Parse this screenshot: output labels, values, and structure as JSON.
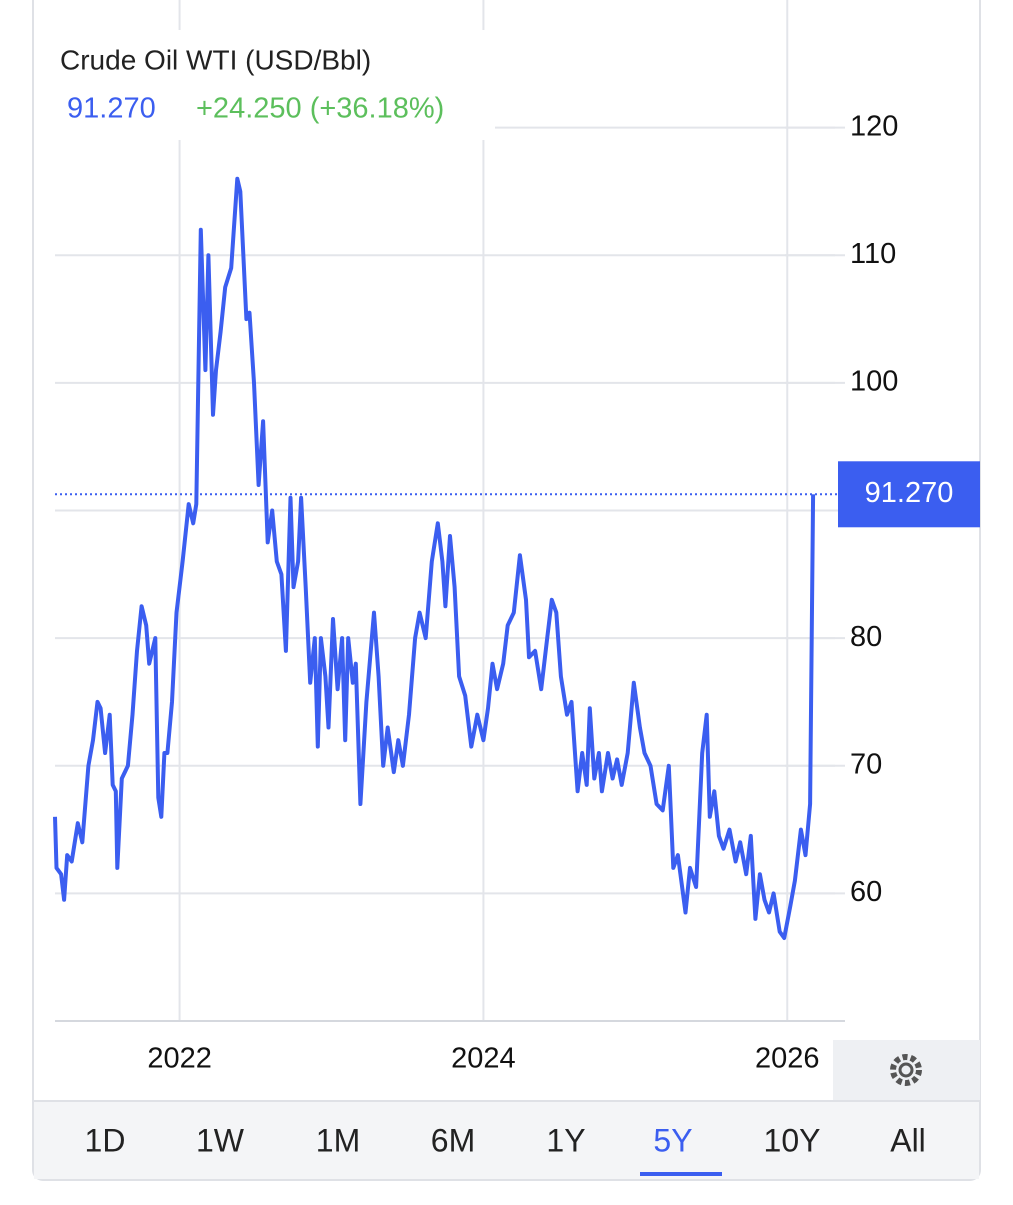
{
  "chart_data": {
    "type": "line",
    "title": "Crude Oil WTI (USD/Bbl)",
    "last_value": 91.27,
    "last_value_label": "91.270",
    "change_label": "+24.250 (+36.18%)",
    "color": "#3b5ef0",
    "change_color": "#5cbf5c",
    "grid": true,
    "xlim": [
      2021.18,
      2026.38
    ],
    "xticks": [
      2022,
      2024,
      2026
    ],
    "ylim": [
      50,
      130
    ],
    "yticks": [
      60,
      70,
      80,
      90,
      100,
      110,
      120
    ],
    "x": [
      2021.18,
      2021.19,
      2021.22,
      2021.24,
      2021.26,
      2021.29,
      2021.33,
      2021.36,
      2021.4,
      2021.43,
      2021.46,
      2021.48,
      2021.51,
      2021.54,
      2021.56,
      2021.58,
      2021.59,
      2021.62,
      2021.66,
      2021.69,
      2021.72,
      2021.75,
      2021.78,
      2021.8,
      2021.84,
      2021.86,
      2021.88,
      2021.9,
      2021.92,
      2021.95,
      2021.98,
      2022.02,
      2022.06,
      2022.09,
      2022.11,
      2022.14,
      2022.17,
      2022.19,
      2022.22,
      2022.24,
      2022.27,
      2022.3,
      2022.34,
      2022.38,
      2022.4,
      2022.44,
      2022.46,
      2022.49,
      2022.52,
      2022.55,
      2022.58,
      2022.61,
      2022.64,
      2022.67,
      2022.7,
      2022.73,
      2022.75,
      2022.78,
      2022.8,
      2022.83,
      2022.86,
      2022.89,
      2022.91,
      2022.93,
      2022.96,
      2022.98,
      2023.01,
      2023.04,
      2023.07,
      2023.09,
      2023.11,
      2023.14,
      2023.16,
      2023.19,
      2023.23,
      2023.28,
      2023.31,
      2023.34,
      2023.37,
      2023.41,
      2023.44,
      2023.47,
      2023.51,
      2023.55,
      2023.58,
      2023.62,
      2023.66,
      2023.7,
      2023.73,
      2023.75,
      2023.78,
      2023.81,
      2023.84,
      2023.88,
      2023.92,
      2023.96,
      2024.0,
      2024.03,
      2024.06,
      2024.09,
      2024.13,
      2024.16,
      2024.2,
      2024.24,
      2024.28,
      2024.3,
      2024.34,
      2024.38,
      2024.42,
      2024.45,
      2024.48,
      2024.51,
      2024.55,
      2024.58,
      2024.62,
      2024.65,
      2024.68,
      2024.7,
      2024.73,
      2024.76,
      2024.78,
      2024.82,
      2024.85,
      2024.88,
      2024.91,
      2024.95,
      2024.99,
      2025.03,
      2025.06,
      2025.1,
      2025.14,
      2025.18,
      2025.22,
      2025.25,
      2025.28,
      2025.33,
      2025.36,
      2025.4,
      2025.44,
      2025.47,
      2025.49,
      2025.52,
      2025.55,
      2025.58,
      2025.62,
      2025.66,
      2025.69,
      2025.73,
      2025.76,
      2025.79,
      2025.82,
      2025.85,
      2025.88,
      2025.91,
      2025.95,
      2025.98,
      2026.02,
      2026.05,
      2026.09,
      2026.12,
      2026.15,
      2026.17
    ],
    "values": [
      66,
      62,
      61.5,
      59.5,
      63,
      62.5,
      65.5,
      64,
      70,
      72,
      75,
      74.5,
      71,
      74,
      68.5,
      68,
      62,
      69,
      70,
      74,
      79,
      82.5,
      81,
      78,
      80,
      67.5,
      66,
      71,
      71,
      75,
      82,
      86,
      90.5,
      89,
      90.5,
      112,
      101,
      110,
      97.5,
      101,
      104,
      107.5,
      109,
      116,
      115,
      105,
      105.5,
      100,
      92,
      97,
      87.5,
      90,
      86,
      85,
      79,
      91,
      84,
      86,
      91,
      84,
      76.5,
      80,
      71.5,
      80,
      77,
      73,
      81.5,
      76,
      80,
      72,
      80,
      76.5,
      78,
      67,
      75,
      82,
      77,
      70,
      73,
      69.5,
      72,
      70,
      74,
      80,
      82,
      80,
      86,
      89,
      86,
      82.5,
      88,
      84,
      77,
      75.5,
      71.5,
      74,
      72,
      74.5,
      78,
      76,
      78,
      81,
      82,
      86.5,
      83,
      78.5,
      79,
      76,
      80,
      83,
      82,
      77,
      74,
      75,
      68,
      71,
      68.5,
      74.5,
      69,
      71,
      68,
      71,
      69,
      70.5,
      68.5,
      71,
      76.5,
      73,
      71,
      70,
      67,
      66.5,
      70,
      62,
      63,
      58.5,
      62,
      60.5,
      71,
      74,
      66,
      68,
      64.5,
      63.5,
      65,
      62.5,
      64,
      61.5,
      64.5,
      58,
      61.5,
      59.5,
      58.5,
      60,
      57,
      56.5,
      59,
      61,
      65,
      63,
      67,
      91.27
    ],
    "tabs": [
      "1D",
      "1W",
      "1M",
      "6M",
      "1Y",
      "5Y",
      "10Y",
      "All"
    ],
    "active_tab": 5
  }
}
